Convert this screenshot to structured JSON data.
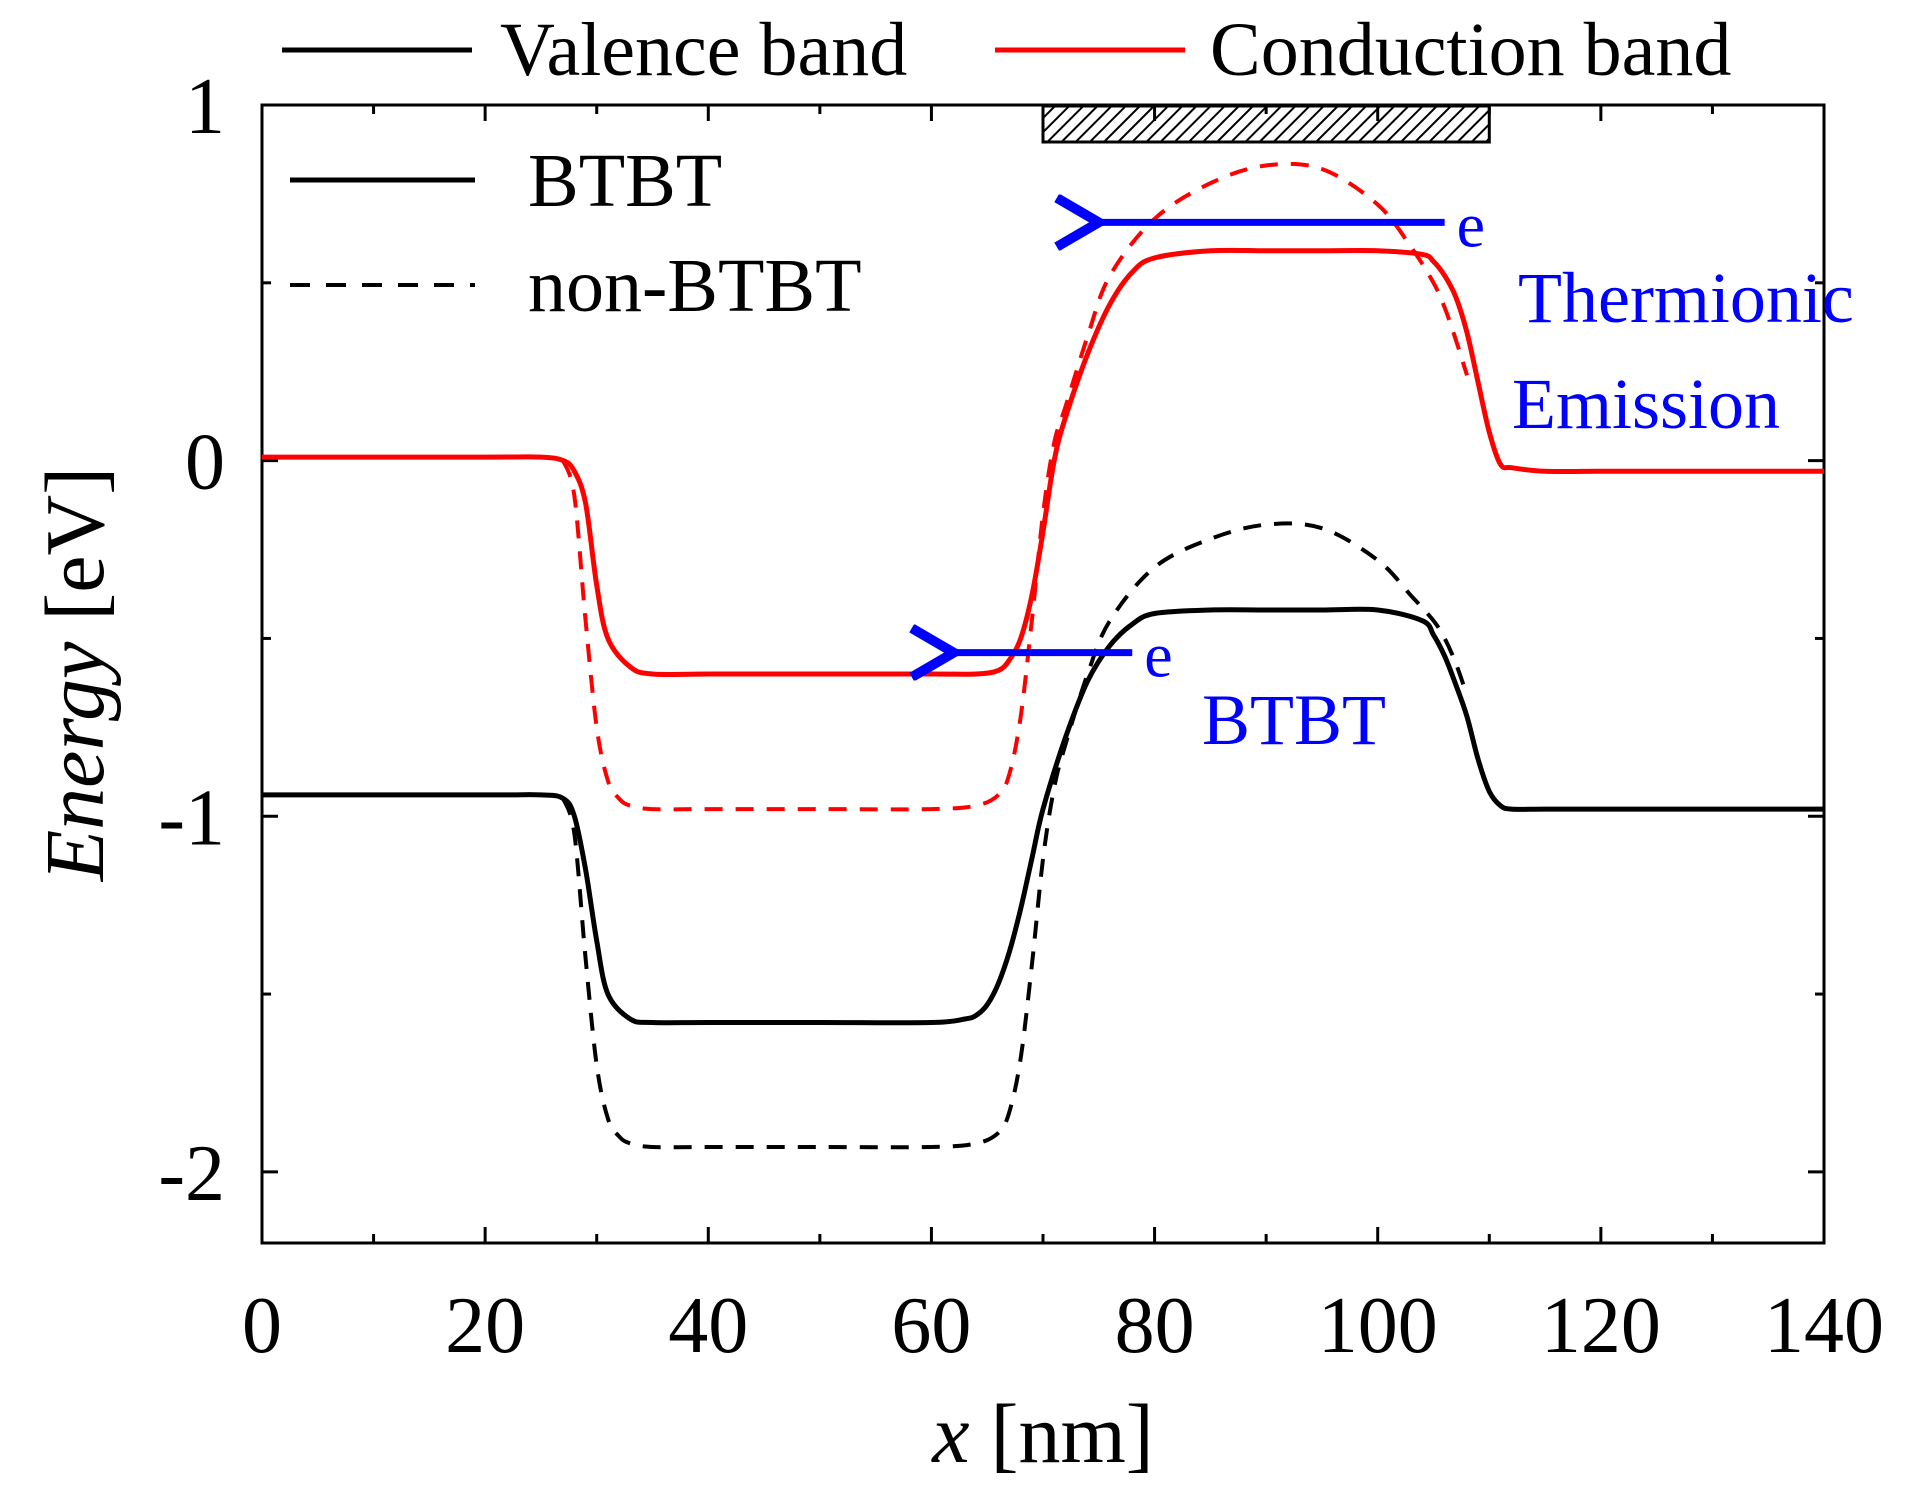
{
  "chart_data": {
    "type": "line",
    "xlabel_var": "x",
    "xlabel_unit": "[nm]",
    "ylabel_var": "Energy",
    "ylabel_unit": "[eV]",
    "xlim": [
      0,
      140
    ],
    "ylim": [
      -2.2,
      1.0
    ],
    "xticks": [
      0,
      20,
      40,
      60,
      80,
      100,
      120,
      140
    ],
    "yticks": [
      -2,
      -1,
      0,
      1
    ],
    "xtick_labels": [
      "0",
      "20",
      "40",
      "60",
      "80",
      "100",
      "120",
      "140"
    ],
    "ytick_labels": [
      "-2",
      "-1",
      "0",
      "1"
    ],
    "x_minor_step": 10,
    "y_minor_step": 0.5,
    "legend_bands": [
      {
        "label": "Valence band",
        "color": "#000000"
      },
      {
        "label": "Conduction band",
        "color": "#ff0000"
      }
    ],
    "legend_styles": [
      {
        "label": "BTBT",
        "dash": "solid"
      },
      {
        "label": "non-BTBT",
        "dash": "dashed"
      }
    ],
    "gate_region": [
      70,
      110
    ],
    "series": [
      {
        "name": "Conduction band, BTBT",
        "color": "#ff0000",
        "dash": "solid",
        "x": [
          0,
          20,
          25,
          27,
          28,
          29,
          30,
          31,
          33,
          35,
          40,
          50,
          60,
          64,
          66,
          67,
          68,
          69,
          70,
          71,
          72,
          74,
          76,
          78,
          80,
          85,
          90,
          95,
          100,
          104,
          105,
          106,
          107,
          108,
          109,
          110,
          111,
          112,
          115,
          120,
          130,
          140
        ],
        "y": [
          0.01,
          0.01,
          0.01,
          0.0,
          -0.03,
          -0.12,
          -0.35,
          -0.5,
          -0.58,
          -0.6,
          -0.6,
          -0.6,
          -0.6,
          -0.6,
          -0.59,
          -0.56,
          -0.5,
          -0.38,
          -0.2,
          0.0,
          0.12,
          0.3,
          0.44,
          0.53,
          0.57,
          0.59,
          0.59,
          0.59,
          0.59,
          0.58,
          0.56,
          0.52,
          0.46,
          0.36,
          0.22,
          0.08,
          -0.01,
          -0.02,
          -0.03,
          -0.03,
          -0.03,
          -0.03
        ]
      },
      {
        "name": "Conduction band, non-BTBT",
        "color": "#ff0000",
        "dash": "dashed",
        "x": [
          27,
          28,
          29,
          30,
          31,
          32,
          33,
          35,
          40,
          50,
          60,
          64,
          66,
          67,
          68,
          69,
          70,
          71,
          72,
          74,
          76,
          80,
          85,
          90,
          95,
          100,
          103,
          105,
          106,
          107,
          108
        ],
        "y": [
          0.0,
          -0.1,
          -0.45,
          -0.75,
          -0.9,
          -0.95,
          -0.97,
          -0.98,
          -0.98,
          -0.98,
          -0.98,
          -0.97,
          -0.94,
          -0.88,
          -0.72,
          -0.45,
          -0.15,
          0.05,
          0.15,
          0.35,
          0.52,
          0.68,
          0.78,
          0.83,
          0.82,
          0.72,
          0.6,
          0.5,
          0.43,
          0.34,
          0.24
        ]
      },
      {
        "name": "Valence band, BTBT",
        "color": "#000000",
        "dash": "solid",
        "x": [
          0,
          20,
          25,
          27,
          28,
          29,
          30,
          31,
          33,
          35,
          40,
          50,
          60,
          63,
          64,
          65,
          66,
          67,
          68,
          69,
          70,
          72,
          74,
          76,
          78,
          80,
          85,
          90,
          95,
          100,
          104,
          105,
          106,
          107,
          108,
          109,
          110,
          111,
          112,
          115,
          120,
          130,
          140
        ],
        "y": [
          -0.94,
          -0.94,
          -0.94,
          -0.95,
          -1.0,
          -1.15,
          -1.35,
          -1.5,
          -1.57,
          -1.58,
          -1.58,
          -1.58,
          -1.58,
          -1.57,
          -1.56,
          -1.53,
          -1.47,
          -1.38,
          -1.26,
          -1.12,
          -0.98,
          -0.78,
          -0.62,
          -0.52,
          -0.46,
          -0.43,
          -0.42,
          -0.42,
          -0.42,
          -0.42,
          -0.45,
          -0.49,
          -0.55,
          -0.63,
          -0.72,
          -0.84,
          -0.93,
          -0.97,
          -0.98,
          -0.98,
          -0.98,
          -0.98,
          -0.98
        ]
      },
      {
        "name": "Valence band, non-BTBT",
        "color": "#000000",
        "dash": "dashed",
        "x": [
          27,
          28,
          29,
          30,
          31,
          32,
          33,
          35,
          40,
          50,
          60,
          64,
          66,
          67,
          68,
          69,
          70,
          71,
          72,
          74,
          76,
          80,
          85,
          90,
          95,
          100,
          103,
          105,
          106,
          107,
          108
        ],
        "y": [
          -0.95,
          -1.05,
          -1.4,
          -1.7,
          -1.85,
          -1.9,
          -1.92,
          -1.93,
          -1.93,
          -1.93,
          -1.93,
          -1.92,
          -1.89,
          -1.83,
          -1.68,
          -1.42,
          -1.12,
          -0.92,
          -0.8,
          -0.6,
          -0.45,
          -0.3,
          -0.22,
          -0.18,
          -0.19,
          -0.28,
          -0.38,
          -0.45,
          -0.5,
          -0.57,
          -0.66
        ]
      }
    ],
    "annotations": [
      {
        "text": "e",
        "arrow_from": [
          106,
          0.67
        ],
        "arrow_to": [
          75,
          0.67
        ],
        "color": "#0000ff"
      },
      {
        "text": "e",
        "arrow_from": [
          78,
          -0.54
        ],
        "arrow_to": [
          62,
          -0.54
        ],
        "color": "#0000ff"
      }
    ],
    "labels": {
      "thermionic_line1": "Thermionic",
      "thermionic_line2": "Emission",
      "btbt": "BTBT"
    }
  }
}
